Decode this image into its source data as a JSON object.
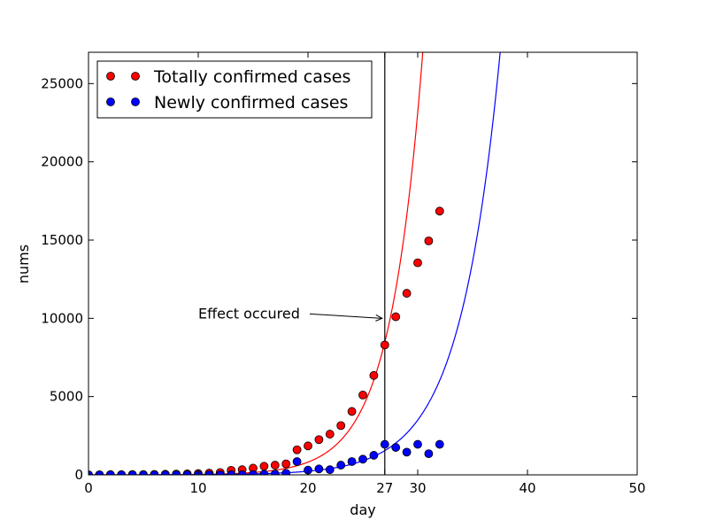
{
  "chart_data": {
    "type": "scatter",
    "xlabel": "day",
    "ylabel": "nums",
    "xlim": [
      0,
      50
    ],
    "ylim": [
      0,
      27000
    ],
    "x_ticks": [
      0,
      10,
      20,
      27,
      30,
      40,
      50
    ],
    "x_tick_labels": [
      "0",
      "10",
      "20",
      "27",
      "30",
      "40",
      "50"
    ],
    "y_ticks": [
      0,
      5000,
      10000,
      15000,
      20000,
      25000
    ],
    "y_tick_labels": [
      "0",
      "5000",
      "10000",
      "15000",
      "20000",
      "25000"
    ],
    "grid": false,
    "legend_position": "top-left",
    "series": [
      {
        "name": "Totally confirmed cases",
        "color": "#ff0000",
        "marker": "circle",
        "x": [
          0,
          1,
          2,
          3,
          4,
          5,
          6,
          7,
          8,
          9,
          10,
          11,
          12,
          13,
          14,
          15,
          16,
          17,
          18,
          19,
          20,
          21,
          22,
          23,
          24,
          25,
          26,
          27,
          28,
          29,
          30,
          31,
          32
        ],
        "y": [
          0,
          0,
          10,
          10,
          20,
          20,
          30,
          40,
          50,
          60,
          80,
          110,
          150,
          290,
          330,
          430,
          550,
          620,
          700,
          1600,
          1850,
          2250,
          2600,
          3150,
          4050,
          5100,
          6350,
          8300,
          10100,
          11600,
          13550,
          14950,
          16850
        ]
      },
      {
        "name": "Newly confirmed cases",
        "color": "#0000ff",
        "marker": "circle",
        "x": [
          0,
          1,
          2,
          3,
          4,
          5,
          6,
          7,
          8,
          9,
          10,
          11,
          12,
          13,
          14,
          15,
          16,
          17,
          18,
          19,
          20,
          21,
          22,
          23,
          24,
          25,
          26,
          27,
          28,
          29,
          30,
          31,
          32
        ],
        "y": [
          0,
          0,
          0,
          0,
          0,
          0,
          0,
          0,
          0,
          0,
          0,
          0,
          0,
          10,
          10,
          20,
          40,
          50,
          100,
          850,
          300,
          380,
          330,
          620,
          850,
          1000,
          1250,
          1950,
          1750,
          1450,
          1950,
          1350,
          1950
        ]
      }
    ],
    "fit_curves": [
      {
        "color": "#ff0000",
        "a": 1,
        "b": 0.335
      },
      {
        "color": "#0000ff",
        "a": 1,
        "b": 0.272
      }
    ],
    "vertical_line": {
      "x": 27,
      "color": "#000000"
    },
    "annotation": {
      "text": "Effect occured",
      "text_x": 10,
      "text_y": 10000,
      "arrow_x": 27,
      "arrow_y": 10000
    }
  }
}
